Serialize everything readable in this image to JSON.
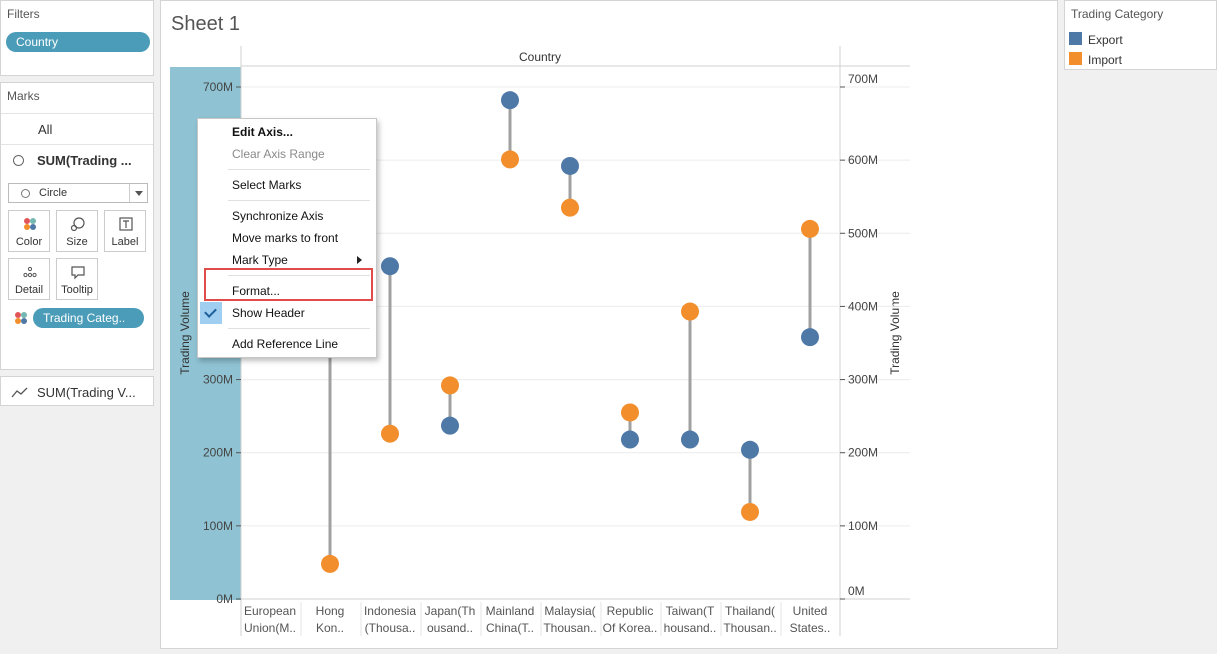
{
  "filters": {
    "title": "Filters",
    "pill": "Country"
  },
  "marks": {
    "title": "Marks",
    "all_label": "All",
    "sum_label": "SUM(Trading ...",
    "mark_type": "Circle",
    "buttons": {
      "color": "Color",
      "size": "Size",
      "label": "Label",
      "detail": "Detail",
      "tooltip": "Tooltip"
    },
    "trading_pill": "Trading Categ..",
    "sum_row_label": "SUM(Trading V..."
  },
  "sheet": {
    "title": "Sheet 1"
  },
  "legend": {
    "title": "Trading Category",
    "items": [
      {
        "label": "Export",
        "color": "#4e79a7"
      },
      {
        "label": "Import",
        "color": "#f28e2b"
      }
    ]
  },
  "context_menu": {
    "items": [
      "Edit Axis...",
      "Clear Axis Range",
      "Select Marks",
      "Synchronize Axis",
      "Move marks to front",
      "Mark Type",
      "Format...",
      "Show Header",
      "Add Reference Line"
    ]
  },
  "chart_data": {
    "type": "scatter",
    "column_header": "Country",
    "categories_line1": [
      "European",
      "Hong",
      "Indonesia",
      "Japan(Th",
      "Mainland",
      "Malaysia(",
      "Republic",
      "Taiwan(T",
      "Thailand(",
      "United"
    ],
    "categories_line2": [
      "Union(M..",
      "Kon..",
      "(Thousa..",
      "ousand..",
      "China(T..",
      "Thousan..",
      "Of Korea..",
      "housand..",
      "Thousan..",
      "States.."
    ],
    "ylabel_left": "Trading Volume",
    "ylabel_right": "Trading Volume",
    "left_ticks": [
      "0M",
      "100M",
      "200M",
      "300M",
      "700M"
    ],
    "right_ticks": [
      "0M",
      "100M",
      "200M",
      "300M",
      "400M",
      "500M",
      "600M",
      "700M"
    ],
    "ylim": [
      0,
      700
    ],
    "grid": true,
    "series": [
      {
        "name": "Export",
        "color": "#4e79a7",
        "values": [
          null,
          null,
          455,
          237,
          682,
          592,
          218,
          218,
          204,
          358
        ]
      },
      {
        "name": "Import",
        "color": "#f28e2b",
        "values": [
          null,
          48,
          226,
          292,
          601,
          535,
          255,
          393,
          119,
          506
        ]
      }
    ]
  }
}
